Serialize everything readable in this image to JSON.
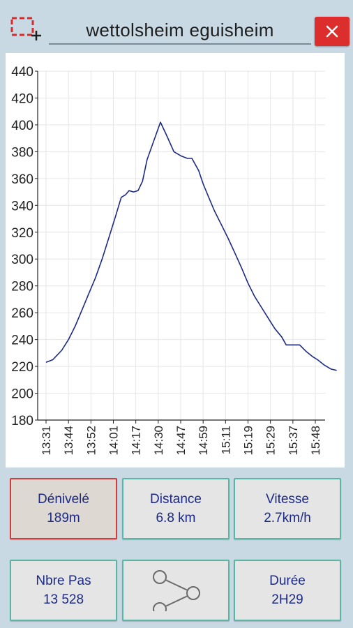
{
  "title": "wettolsheim eguisheim",
  "icons": {
    "select": "selection-square-icon",
    "close": "close-icon",
    "share": "share-icon"
  },
  "colors": {
    "close_button": "#dd2e2e",
    "line": "#1c2a86",
    "active_tile_border": "#d23c3c",
    "tile_border": "#59b6a4"
  },
  "stats": {
    "denivele_label": "Dénivelé",
    "denivele_value": "189m",
    "distance_label": "Distance",
    "distance_value": "6.8 km",
    "vitesse_label": "Vitesse",
    "vitesse_value": "2.7km/h",
    "pas_label": "Nbre Pas",
    "pas_value": "13 528",
    "duree_label": "Durée",
    "duree_value": "2H29"
  },
  "chart_data": {
    "type": "line",
    "title": "",
    "xlabel": "",
    "ylabel": "",
    "ylim": [
      180,
      440
    ],
    "y_ticks": [
      180,
      200,
      220,
      240,
      260,
      280,
      300,
      320,
      340,
      360,
      380,
      400,
      420,
      440
    ],
    "x_ticks": [
      "13:31",
      "13:44",
      "13:52",
      "14:01",
      "14:17",
      "14:30",
      "14:47",
      "14:59",
      "15:11",
      "15:19",
      "15:29",
      "15:37",
      "15:48"
    ],
    "grid": true,
    "series": [
      {
        "values": [
          [
            0,
            223
          ],
          [
            0.3,
            225
          ],
          [
            0.7,
            232
          ],
          [
            1.0,
            240
          ],
          [
            1.3,
            250
          ],
          [
            1.6,
            262
          ],
          [
            1.9,
            274
          ],
          [
            2.2,
            286
          ],
          [
            2.5,
            300
          ],
          [
            2.8,
            316
          ],
          [
            3.1,
            332
          ],
          [
            3.35,
            346
          ],
          [
            3.55,
            348
          ],
          [
            3.7,
            351
          ],
          [
            3.9,
            350
          ],
          [
            4.1,
            351
          ],
          [
            4.3,
            358
          ],
          [
            4.5,
            374
          ],
          [
            4.8,
            388
          ],
          [
            5.1,
            402
          ],
          [
            5.35,
            393
          ],
          [
            5.7,
            380
          ],
          [
            6.0,
            377
          ],
          [
            6.3,
            375
          ],
          [
            6.5,
            375
          ],
          [
            6.8,
            366
          ],
          [
            7.0,
            356
          ],
          [
            7.25,
            346
          ],
          [
            7.5,
            336
          ],
          [
            7.8,
            326
          ],
          [
            8.1,
            316
          ],
          [
            8.4,
            305
          ],
          [
            8.7,
            294
          ],
          [
            9.0,
            282
          ],
          [
            9.3,
            272
          ],
          [
            9.6,
            264
          ],
          [
            9.9,
            256
          ],
          [
            10.2,
            248
          ],
          [
            10.5,
            242
          ],
          [
            10.7,
            236
          ],
          [
            11.0,
            236
          ],
          [
            11.3,
            236
          ],
          [
            11.6,
            231
          ],
          [
            11.9,
            227
          ],
          [
            12.1,
            225
          ],
          [
            12.4,
            221
          ],
          [
            12.7,
            218
          ],
          [
            12.95,
            217
          ]
        ]
      }
    ]
  }
}
